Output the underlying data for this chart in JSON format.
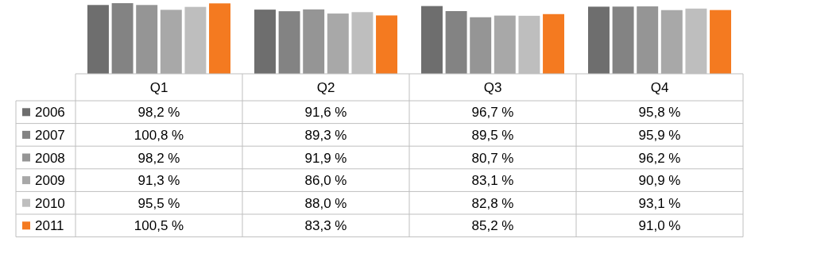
{
  "chart_data": {
    "type": "bar",
    "legend": "left",
    "categories": [
      "Q1",
      "Q2",
      "Q3",
      "Q4"
    ],
    "series": [
      {
        "name": "2006",
        "color": "#6e6e6e",
        "values": [
          98.2,
          91.6,
          96.7,
          95.8
        ],
        "value_labels": [
          "98,2 %",
          "91,6 %",
          "96,7 %",
          "95,8 %"
        ]
      },
      {
        "name": "2007",
        "color": "#838383",
        "values": [
          100.8,
          89.3,
          89.5,
          95.9
        ],
        "value_labels": [
          "100,8 %",
          "89,3 %",
          "89,5 %",
          "95,9 %"
        ]
      },
      {
        "name": "2008",
        "color": "#959595",
        "values": [
          98.2,
          91.9,
          80.7,
          96.2
        ],
        "value_labels": [
          "98,2 %",
          "91,9 %",
          "80,7 %",
          "96,2 %"
        ]
      },
      {
        "name": "2009",
        "color": "#a8a8a8",
        "values": [
          91.3,
          86.0,
          83.1,
          90.9
        ],
        "value_labels": [
          "91,3 %",
          "86,0 %",
          "83,1 %",
          "90,9 %"
        ]
      },
      {
        "name": "2010",
        "color": "#bebebe",
        "values": [
          95.5,
          88.0,
          82.8,
          93.1
        ],
        "value_labels": [
          "95,5 %",
          "88,0 %",
          "82,8 %",
          "93,1 %"
        ]
      },
      {
        "name": "2011",
        "color": "#f47a20",
        "values": [
          100.5,
          83.3,
          85.2,
          91.0
        ],
        "value_labels": [
          "100,5 %",
          "83,3 %",
          "85,2 %",
          "91,0 %"
        ]
      }
    ]
  }
}
